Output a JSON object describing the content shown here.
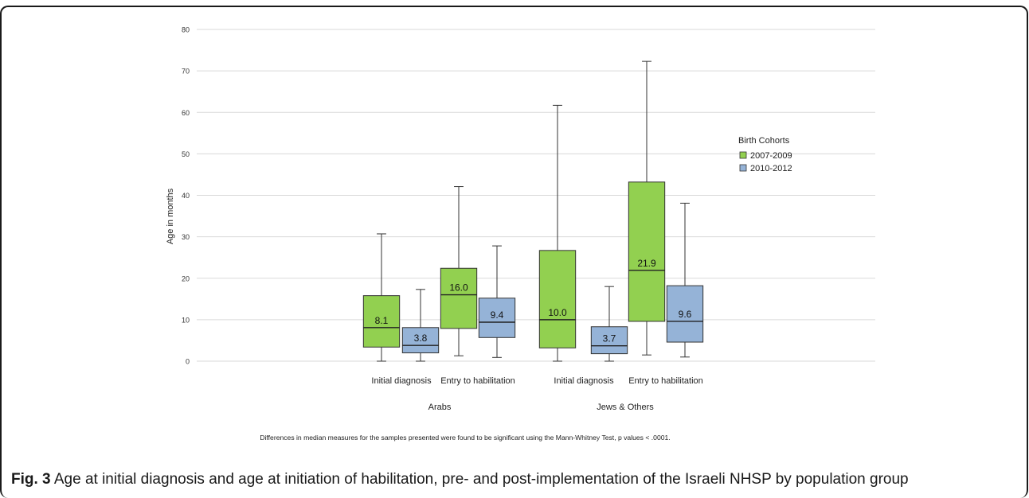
{
  "figure": {
    "caption_label": "Fig. 3",
    "caption_text": " Age at initial diagnosis and age at initiation of habilitation, pre- and post-implementation of the Israeli NHSP by population group"
  },
  "chart_data": {
    "type": "boxplot",
    "ylabel": "Age in months",
    "ylim": [
      0,
      80
    ],
    "yticks": [
      0,
      10,
      20,
      30,
      40,
      50,
      60,
      70,
      80
    ],
    "grid": true,
    "groups": [
      "Arabs",
      "Jews & Others"
    ],
    "categories": [
      "Initial diagnosis",
      "Entry to habilitation",
      "Initial diagnosis",
      "Entry to habilitation"
    ],
    "legend": {
      "title": "Birth Cohorts",
      "position": "right",
      "entries": [
        {
          "name": "2007-2009",
          "color": "#92d050"
        },
        {
          "name": "2010-2012",
          "color": "#95b3d7"
        }
      ]
    },
    "series": [
      {
        "name": "2007-2009",
        "color": "#92d050",
        "boxes": [
          {
            "group": "Arabs",
            "category": "Initial diagnosis",
            "min": 0,
            "q1": 3.4,
            "median": 8.1,
            "q3": 15.8,
            "max": 30.7,
            "label": "8.1"
          },
          {
            "group": "Arabs",
            "category": "Entry to habilitation",
            "min": 1.3,
            "q1": 7.9,
            "median": 16.0,
            "q3": 22.4,
            "max": 42.1,
            "label": "16.0"
          },
          {
            "group": "Jews & Others",
            "category": "Initial diagnosis",
            "min": 0,
            "q1": 3.2,
            "median": 10.0,
            "q3": 26.7,
            "max": 61.7,
            "label": "10.0"
          },
          {
            "group": "Jews & Others",
            "category": "Entry to habilitation",
            "min": 1.5,
            "q1": 9.6,
            "median": 21.9,
            "q3": 43.2,
            "max": 72.3,
            "label": "21.9"
          }
        ]
      },
      {
        "name": "2010-2012",
        "color": "#95b3d7",
        "boxes": [
          {
            "group": "Arabs",
            "category": "Initial diagnosis",
            "min": 0,
            "q1": 2.0,
            "median": 3.8,
            "q3": 8.1,
            "max": 17.3,
            "label": "3.8"
          },
          {
            "group": "Arabs",
            "category": "Entry to habilitation",
            "min": 0.9,
            "q1": 5.7,
            "median": 9.4,
            "q3": 15.2,
            "max": 27.8,
            "label": "9.4"
          },
          {
            "group": "Jews & Others",
            "category": "Initial diagnosis",
            "min": 0,
            "q1": 1.8,
            "median": 3.7,
            "q3": 8.3,
            "max": 18.0,
            "label": "3.7"
          },
          {
            "group": "Jews & Others",
            "category": "Entry to habilitation",
            "min": 1.0,
            "q1": 4.6,
            "median": 9.6,
            "q3": 18.2,
            "max": 38.1,
            "label": "9.6"
          }
        ]
      }
    ],
    "footnote": "Differences in median measures for the samples presented were found to be significant using the Mann-Whitney Test, p values < .0001."
  }
}
